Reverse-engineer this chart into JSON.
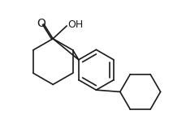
{
  "background_color": "#ffffff",
  "line_color": "#1a1a1a",
  "line_width": 1.2,
  "text_color": "#1a1a1a",
  "font_size": 9,
  "cooh_o_fontsize": 10,
  "cooh_oh_fontsize": 9,
  "fig_width": 2.3,
  "fig_height": 1.68,
  "dpi": 100
}
